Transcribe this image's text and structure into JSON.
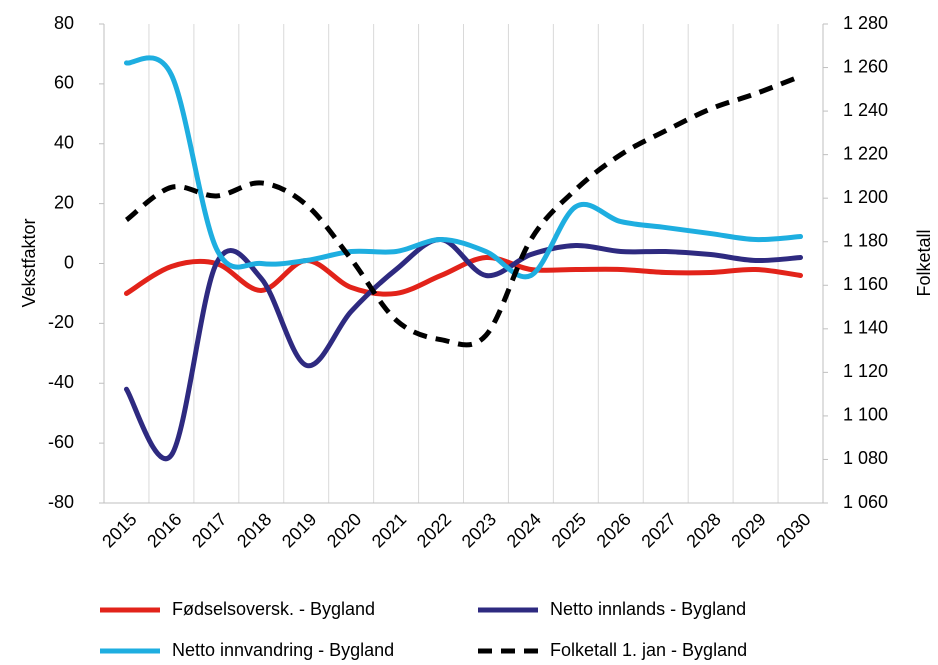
{
  "chart_data": {
    "type": "line",
    "categories": [
      "2015",
      "2016",
      "2017",
      "2018",
      "2019",
      "2020",
      "2021",
      "2022",
      "2023",
      "2024",
      "2025",
      "2026",
      "2027",
      "2028",
      "2029",
      "2030"
    ],
    "y_label": "Vekstfaktor",
    "y2_label": "Folketall",
    "ylim": [
      -80,
      80
    ],
    "yticks": [
      -80,
      -60,
      -40,
      -20,
      0,
      20,
      40,
      60,
      80
    ],
    "y2lim": [
      1060,
      1280
    ],
    "y2ticks": [
      {
        "value": 1060,
        "label": "1 060"
      },
      {
        "value": 1080,
        "label": "1 080"
      },
      {
        "value": 1100,
        "label": "1 100"
      },
      {
        "value": 1120,
        "label": "1 120"
      },
      {
        "value": 1140,
        "label": "1 140"
      },
      {
        "value": 1160,
        "label": "1 160"
      },
      {
        "value": 1180,
        "label": "1 180"
      },
      {
        "value": 1200,
        "label": "1 200"
      },
      {
        "value": 1220,
        "label": "1 220"
      },
      {
        "value": 1240,
        "label": "1 240"
      },
      {
        "value": 1260,
        "label": "1 260"
      },
      {
        "value": 1280,
        "label": "1 280"
      }
    ],
    "grid": "x",
    "legend": "bottom",
    "series": [
      {
        "name": "Fødselsoversk. - Bygland",
        "color": "#e2231a",
        "values": [
          -10,
          -1,
          0,
          -9,
          1,
          -8,
          -10,
          -4,
          2,
          -2,
          -2,
          -2,
          -3,
          -3,
          -2,
          -4
        ]
      },
      {
        "name": "Netto innlands - Bygland",
        "color": "#2e2a80",
        "values": [
          -42,
          -64,
          0,
          -5,
          -34,
          -16,
          -2,
          8,
          -4,
          3,
          6,
          4,
          4,
          3,
          1,
          2
        ]
      },
      {
        "name": "Netto innvandring - Bygland",
        "color": "#1eaee0",
        "values": [
          67,
          63,
          5,
          0,
          1,
          4,
          4,
          8,
          4,
          -4,
          19,
          14,
          12,
          10,
          8,
          9
        ]
      },
      {
        "name": "Folketall 1. jan - Bygland",
        "color": "#000000",
        "dashed": true,
        "axis": "y2",
        "values": [
          1190,
          1205,
          1201,
          1207,
          1197,
          1172,
          1144,
          1135,
          1137,
          1181,
          1204,
          1220,
          1231,
          1241,
          1248,
          1256
        ]
      }
    ]
  }
}
